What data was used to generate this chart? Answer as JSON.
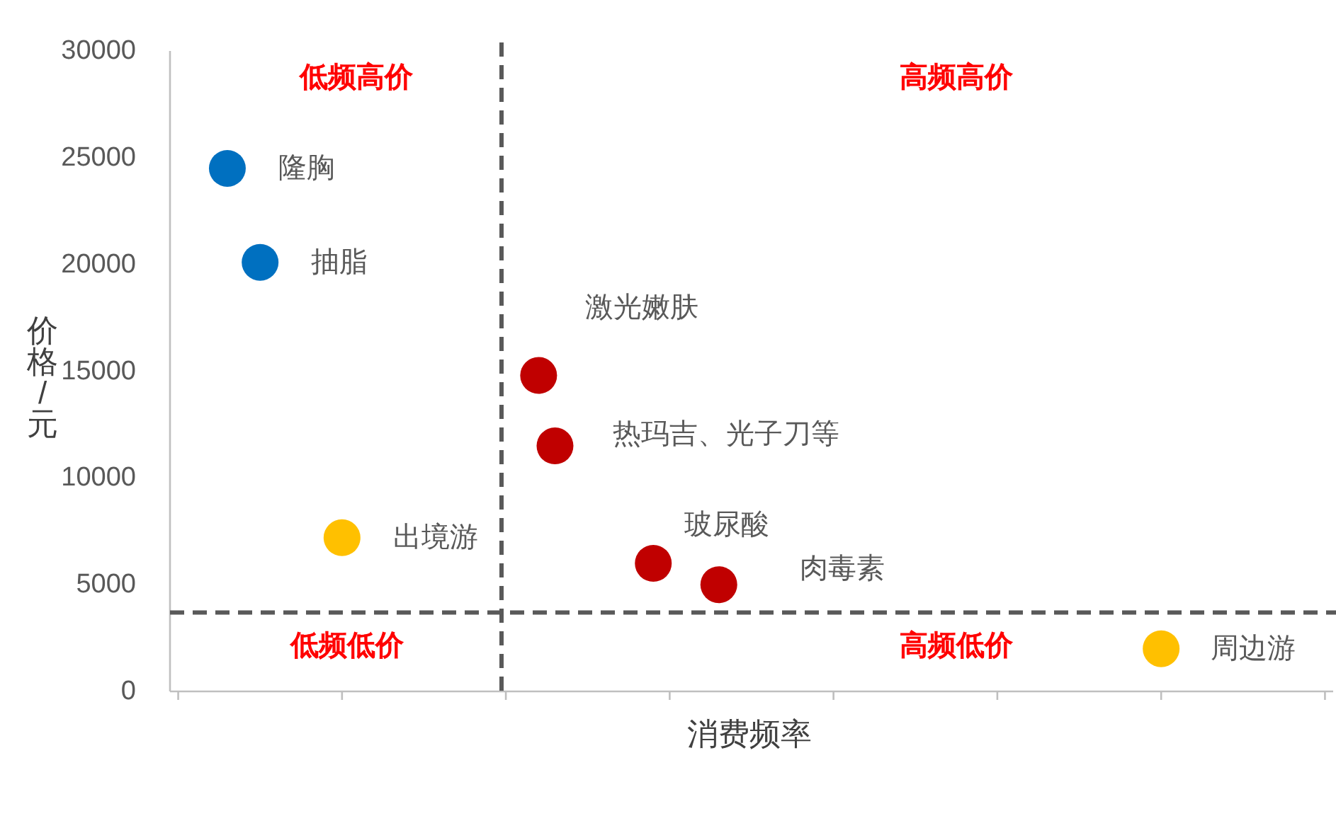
{
  "chart_data": {
    "type": "scatter",
    "xlabel": "消费频率",
    "ylabel": "价格/元",
    "categories": [
      null,
      null,
      null,
      null,
      null,
      null,
      null,
      null,
      null,
      null,
      null,
      null,
      null,
      null,
      null,
      null,
      null,
      null,
      null,
      null,
      null,
      null,
      null,
      null,
      null,
      null,
      null,
      null,
      null,
      null,
      null,
      null,
      null,
      null,
      null,
      null,
      null,
      null,
      null,
      null,
      null,
      null,
      null,
      null,
      null,
      null,
      null,
      null,
      null,
      null,
      null,
      null,
      null,
      null,
      null,
      null,
      null,
      null,
      null,
      null,
      null,
      null,
      null,
      null,
      null,
      null,
      null,
      null,
      null,
      null,
      null
    ],
    "series": [
      {
        "name": "隆胸",
        "color": "#0070c0",
        "values": [
          null,
          null,
          null,
          24500,
          null,
          null,
          null,
          null,
          null,
          null,
          null,
          null,
          null,
          null,
          null,
          null,
          null,
          null,
          null,
          null,
          null,
          null,
          null,
          null,
          null,
          null,
          null,
          null,
          null,
          null,
          null,
          null,
          null,
          null,
          null,
          null,
          null,
          null,
          null,
          null,
          null,
          null,
          null,
          null,
          null,
          null,
          null,
          null,
          null,
          null,
          null,
          null,
          null,
          null,
          null,
          null,
          null,
          null,
          null,
          null,
          null,
          null,
          null,
          null,
          null,
          null,
          null,
          null,
          null,
          null,
          null
        ]
      },
      {
        "name": "抽脂",
        "color": "#0070c0",
        "values": [
          null,
          null,
          null,
          null,
          null,
          20100,
          null,
          null,
          null,
          null,
          null,
          null,
          null,
          null,
          null,
          null,
          null,
          null,
          null,
          null,
          null,
          null,
          null,
          null,
          null,
          null,
          null,
          null,
          null,
          null,
          null,
          null,
          null,
          null,
          null,
          null,
          null,
          null,
          null,
          null,
          null,
          null,
          null,
          null,
          null,
          null,
          null,
          null,
          null,
          null,
          null,
          null,
          null,
          null,
          null,
          null,
          null,
          null,
          null,
          null,
          null,
          null,
          null,
          null,
          null,
          null,
          null,
          null,
          null,
          null,
          null
        ]
      },
      {
        "name": "激光嫩肤",
        "color": "#c00000",
        "values": [
          null,
          null,
          null,
          null,
          null,
          null,
          null,
          null,
          null,
          null,
          null,
          null,
          null,
          null,
          null,
          null,
          null,
          null,
          null,
          null,
          null,
          null,
          14800,
          null,
          null,
          null,
          null,
          null,
          null,
          null,
          null,
          null,
          null,
          null,
          null,
          null,
          null,
          null,
          null,
          null,
          null,
          null,
          null,
          null,
          null,
          null,
          null,
          null,
          null,
          null,
          null,
          null,
          null,
          null,
          null,
          null,
          null,
          null,
          null,
          null,
          null,
          null,
          null,
          null,
          null,
          null,
          null,
          null,
          null,
          null,
          null
        ]
      },
      {
        "name": "热玛吉、光子刀等",
        "color": "#c00000",
        "values": [
          null,
          null,
          null,
          null,
          null,
          null,
          null,
          null,
          null,
          null,
          null,
          null,
          null,
          null,
          null,
          null,
          null,
          null,
          null,
          null,
          null,
          null,
          null,
          11500,
          null,
          null,
          null,
          null,
          null,
          null,
          null,
          null,
          null,
          null,
          null,
          null,
          null,
          null,
          null,
          null,
          null,
          null,
          null,
          null,
          null,
          null,
          null,
          null,
          null,
          null,
          null,
          null,
          null,
          null,
          null,
          null,
          null,
          null,
          null,
          null,
          null,
          null,
          null,
          null,
          null,
          null,
          null,
          null,
          null,
          null,
          null
        ]
      },
      {
        "name": "玻尿酸",
        "color": "#c00000",
        "values": [
          null,
          null,
          null,
          null,
          null,
          null,
          null,
          null,
          null,
          null,
          null,
          null,
          null,
          null,
          null,
          null,
          null,
          null,
          null,
          null,
          null,
          null,
          null,
          null,
          null,
          null,
          null,
          null,
          null,
          6000,
          null,
          null,
          null,
          null,
          null,
          null,
          null,
          null,
          null,
          null,
          null,
          null,
          null,
          null,
          null,
          null,
          null,
          null,
          null,
          null,
          null,
          null,
          null,
          null,
          null,
          null,
          null,
          null,
          null,
          null,
          null,
          null,
          null,
          null,
          null,
          null,
          null,
          null,
          null,
          null,
          null
        ]
      },
      {
        "name": "肉毒素",
        "color": "#c00000",
        "values": [
          null,
          null,
          null,
          null,
          null,
          null,
          null,
          null,
          null,
          null,
          null,
          null,
          null,
          null,
          null,
          null,
          null,
          null,
          null,
          null,
          null,
          null,
          null,
          null,
          null,
          null,
          null,
          null,
          null,
          null,
          null,
          null,
          null,
          5000,
          null,
          null,
          null,
          null,
          null,
          null,
          null,
          null,
          null,
          null,
          null,
          null,
          null,
          null,
          null,
          null,
          null,
          null,
          null,
          null,
          null,
          null,
          null,
          null,
          null,
          null,
          null,
          null,
          null,
          null,
          null,
          null,
          null,
          null,
          null,
          null,
          null
        ]
      },
      {
        "name": "出境游",
        "color": "#ffc000",
        "values": [
          null,
          null,
          null,
          null,
          null,
          null,
          null,
          null,
          null,
          null,
          7200,
          null,
          null,
          null,
          null,
          null,
          null,
          null,
          null,
          null,
          null,
          null,
          null,
          null,
          null,
          null,
          null,
          null,
          null,
          null,
          null,
          null,
          null,
          null,
          null,
          null,
          null,
          null,
          null,
          null,
          null,
          null,
          null,
          null,
          null,
          null,
          null,
          null,
          null,
          null,
          null,
          null,
          null,
          null,
          null,
          null,
          null,
          null,
          null,
          null,
          null,
          null,
          null,
          null,
          null,
          null,
          null,
          null,
          null,
          null,
          null
        ]
      },
      {
        "name": "周边游",
        "color": "#ffc000",
        "values": [
          null,
          null,
          null,
          null,
          null,
          null,
          null,
          null,
          null,
          null,
          null,
          null,
          null,
          null,
          null,
          null,
          null,
          null,
          null,
          null,
          null,
          null,
          null,
          null,
          null,
          null,
          null,
          null,
          null,
          null,
          null,
          null,
          null,
          null,
          null,
          null,
          null,
          null,
          null,
          null,
          null,
          null,
          null,
          null,
          null,
          null,
          null,
          null,
          null,
          null,
          null,
          null,
          null,
          null,
          null,
          null,
          null,
          null,
          null,
          null,
          2000,
          null,
          null,
          null,
          null,
          null,
          null,
          null,
          null,
          null,
          null
        ]
      }
    ],
    "ylim": [
      0,
      30000
    ],
    "yticks": [
      0,
      5000,
      10000,
      15000,
      20000,
      25000,
      30000
    ],
    "ref_lines": [
      {
        "axis": "y",
        "value": 3700,
        "color": "#595959",
        "line_style": "dashed"
      }
    ],
    "annotations": [
      "低频高价",
      "高频高价",
      "低频低价",
      "高频低价"
    ],
    "marker": "circle",
    "grid": false,
    "legend": false
  }
}
